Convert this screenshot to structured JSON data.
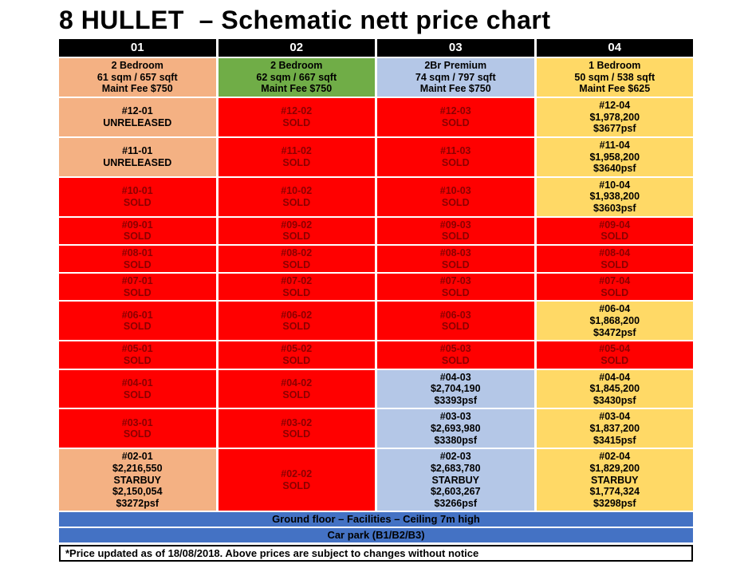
{
  "title": "8 HULLET  – Schematic nett price chart",
  "columns": [
    "01",
    "02",
    "03",
    "04"
  ],
  "stacks": [
    {
      "color": "peach",
      "lines": [
        "2 Bedroom",
        "61 sqm / 657 sqft",
        "Maint Fee $750"
      ]
    },
    {
      "color": "green",
      "lines": [
        "2 Bedroom",
        "62 sqm / 667 sqft",
        "Maint Fee $750"
      ]
    },
    {
      "color": "blue",
      "lines": [
        "2Br Premium",
        "74 sqm / 797 sqft",
        "Maint Fee $750"
      ]
    },
    {
      "color": "yellow",
      "lines": [
        "1 Bedroom",
        "50 sqm / 538 sqft",
        "Maint Fee $625"
      ]
    }
  ],
  "rows": [
    {
      "floor": "12",
      "cells": [
        {
          "color": "peach",
          "lines": [
            "#12-01",
            "UNRELEASED"
          ]
        },
        {
          "color": "sold",
          "lines": [
            "#12-02",
            "SOLD"
          ]
        },
        {
          "color": "sold",
          "lines": [
            "#12-03",
            "SOLD"
          ]
        },
        {
          "color": "yellow",
          "lines": [
            "#12-04",
            "$1,978,200",
            "$3677psf"
          ]
        }
      ]
    },
    {
      "floor": "11",
      "cells": [
        {
          "color": "peach",
          "lines": [
            "#11-01",
            "UNRELEASED"
          ]
        },
        {
          "color": "sold",
          "lines": [
            "#11-02",
            "SOLD"
          ]
        },
        {
          "color": "sold",
          "lines": [
            "#11-03",
            "SOLD"
          ]
        },
        {
          "color": "yellow",
          "lines": [
            "#11-04",
            "$1,958,200",
            "$3640psf"
          ]
        }
      ]
    },
    {
      "floor": "10",
      "cells": [
        {
          "color": "sold",
          "lines": [
            "#10-01",
            "SOLD"
          ]
        },
        {
          "color": "sold",
          "lines": [
            "#10-02",
            "SOLD"
          ]
        },
        {
          "color": "sold",
          "lines": [
            "#10-03",
            "SOLD"
          ]
        },
        {
          "color": "yellow",
          "lines": [
            "#10-04",
            "$1,938,200",
            "$3603psf"
          ]
        }
      ]
    },
    {
      "floor": "09",
      "cells": [
        {
          "color": "sold",
          "lines": [
            "#09-01",
            "SOLD"
          ]
        },
        {
          "color": "sold",
          "lines": [
            "#09-02",
            "SOLD"
          ]
        },
        {
          "color": "sold",
          "lines": [
            "#09-03",
            "SOLD"
          ]
        },
        {
          "color": "sold",
          "lines": [
            "#09-04",
            "SOLD"
          ]
        }
      ]
    },
    {
      "floor": "08",
      "cells": [
        {
          "color": "sold",
          "lines": [
            "#08-01",
            "SOLD"
          ]
        },
        {
          "color": "sold",
          "lines": [
            "#08-02",
            "SOLD"
          ]
        },
        {
          "color": "sold",
          "lines": [
            "#08-03",
            "SOLD"
          ]
        },
        {
          "color": "sold",
          "lines": [
            "#08-04",
            "SOLD"
          ]
        }
      ]
    },
    {
      "floor": "07",
      "cells": [
        {
          "color": "sold",
          "lines": [
            "#07-01",
            "SOLD"
          ]
        },
        {
          "color": "sold",
          "lines": [
            "#07-02",
            "SOLD"
          ]
        },
        {
          "color": "sold",
          "lines": [
            "#07-03",
            "SOLD"
          ]
        },
        {
          "color": "sold",
          "lines": [
            "#07-04",
            "SOLD"
          ]
        }
      ]
    },
    {
      "floor": "06",
      "cells": [
        {
          "color": "sold",
          "lines": [
            "#06-01",
            "SOLD"
          ]
        },
        {
          "color": "sold",
          "lines": [
            "#06-02",
            "SOLD"
          ]
        },
        {
          "color": "sold",
          "lines": [
            "#06-03",
            "SOLD"
          ]
        },
        {
          "color": "yellow",
          "lines": [
            "#06-04",
            "$1,868,200",
            "$3472psf"
          ]
        }
      ]
    },
    {
      "floor": "05",
      "cells": [
        {
          "color": "sold",
          "lines": [
            "#05-01",
            "SOLD"
          ]
        },
        {
          "color": "sold",
          "lines": [
            "#05-02",
            "SOLD"
          ]
        },
        {
          "color": "sold",
          "lines": [
            "#05-03",
            "SOLD"
          ]
        },
        {
          "color": "sold",
          "lines": [
            "#05-04",
            "SOLD"
          ]
        }
      ]
    },
    {
      "floor": "04",
      "cells": [
        {
          "color": "sold",
          "lines": [
            "#04-01",
            "SOLD"
          ]
        },
        {
          "color": "sold",
          "lines": [
            "#04-02",
            "SOLD"
          ]
        },
        {
          "color": "blue",
          "lines": [
            "#04-03",
            "$2,704,190",
            "$3393psf"
          ]
        },
        {
          "color": "yellow",
          "lines": [
            "#04-04",
            "$1,845,200",
            "$3430psf"
          ]
        }
      ]
    },
    {
      "floor": "03",
      "cells": [
        {
          "color": "sold",
          "lines": [
            "#03-01",
            "SOLD"
          ]
        },
        {
          "color": "sold",
          "lines": [
            "#03-02",
            "SOLD"
          ]
        },
        {
          "color": "blue",
          "lines": [
            "#03-03",
            "$2,693,980",
            "$3380psf"
          ]
        },
        {
          "color": "yellow",
          "lines": [
            "#03-04",
            "$1,837,200",
            "$3415psf"
          ]
        }
      ]
    },
    {
      "floor": "02",
      "cells": [
        {
          "color": "peach",
          "lines": [
            "#02-01",
            "$2,216,550",
            "STARBUY",
            "$2,150,054",
            "$3272psf"
          ]
        },
        {
          "color": "sold",
          "lines": [
            "#02-02",
            "SOLD"
          ]
        },
        {
          "color": "blue",
          "lines": [
            "#02-03",
            "$2,683,780",
            "STARBUY",
            "$2,603,267",
            "$3266psf"
          ]
        },
        {
          "color": "yellow",
          "lines": [
            "#02-04",
            "$1,829,200",
            "STARBUY",
            "$1,774,324",
            "$3298psf"
          ]
        }
      ]
    }
  ],
  "footer_bars": [
    "Ground floor – Facilities – Ceiling 7m high",
    "Car park (B1/B2/B3)"
  ],
  "footnote": "*Price updated as of 18/08/2018. Above prices are subject to changes without notice",
  "colors": {
    "sold_bg": "#FF0000",
    "sold_text": "#8B0000",
    "peach": "#F4B183",
    "green": "#70AD47",
    "blue": "#B4C7E7",
    "yellow": "#FFD966",
    "footer_blue": "#4472C4",
    "header_bg": "#000000",
    "header_text": "#FFFFFF"
  }
}
